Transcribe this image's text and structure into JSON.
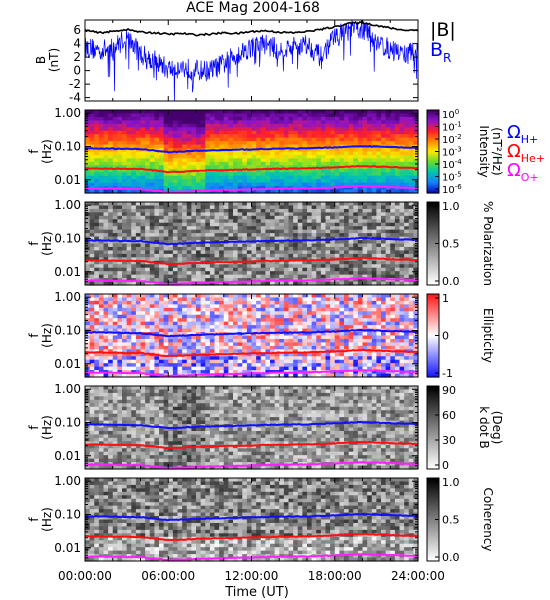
{
  "title": "ACE Mag 2004-168",
  "xlabel": "Time (UT)",
  "xticks": [
    "00:00:00",
    "06:00:00",
    "12:00:00",
    "18:00:00",
    "24:00:00"
  ],
  "legend_top": [
    {
      "label": "|B|",
      "color": "#000000"
    },
    {
      "label": "B",
      "sub": "R",
      "color": "#0000ff"
    }
  ],
  "legend_spec": [
    {
      "label": "Ω",
      "sub": "H+",
      "color": "#0000ff"
    },
    {
      "label": "Ω",
      "sub": "He+",
      "color": "#ff0000"
    },
    {
      "label": "Ω",
      "sub": "O+",
      "color": "#ff00ff"
    }
  ],
  "panel_ylabel_main": "f",
  "panel_ylabel_unit": "(Hz)",
  "freq_ticks": [
    "1.00",
    "0.10",
    "0.01"
  ],
  "colors": {
    "H+": "#1010ff",
    "He+": "#ff1010",
    "O+": "#ff20ff",
    "B": "#000000",
    "BR": "#0000ff"
  },
  "panels": [
    {
      "type": "spectrogram",
      "colormap": "rainbow",
      "cbar_label_1": "Intensity",
      "cbar_label_2": "(nT²/Hz)",
      "cbar_ticks": [
        {
          "b": "10",
          "e": "0"
        },
        {
          "b": "10",
          "e": "-1"
        },
        {
          "b": "10",
          "e": "-2"
        },
        {
          "b": "10",
          "e": "-3"
        },
        {
          "b": "10",
          "e": "-4"
        },
        {
          "b": "10",
          "e": "-5"
        },
        {
          "b": "10",
          "e": "-6"
        }
      ]
    },
    {
      "type": "spectrogram",
      "colormap": "gray",
      "cbar_label_1": "% Polarization",
      "cbar_label_2": "",
      "cbar_ticks": [
        "1.0",
        "0.5",
        "0.0"
      ]
    },
    {
      "type": "spectrogram",
      "colormap": "bwr",
      "cbar_label_1": "Ellipticity",
      "cbar_label_2": "",
      "cbar_ticks": [
        "1",
        "0",
        "-1"
      ]
    },
    {
      "type": "spectrogram",
      "colormap": "gray_rev",
      "cbar_label_1": "k dot B",
      "cbar_label_2": "(Deg)",
      "cbar_ticks": [
        "90",
        "60",
        "30",
        "0"
      ]
    },
    {
      "type": "spectrogram",
      "colormap": "gray",
      "cbar_label_1": "Coherency",
      "cbar_label_2": "",
      "cbar_ticks": [
        "1.0",
        "0.5",
        "0.0"
      ]
    }
  ],
  "chart_data": {
    "type": "line",
    "title": "ACE Mag 2004-168",
    "xlabel": "Time (UT)",
    "xlim": [
      0,
      24
    ],
    "top_panel": {
      "ylabel": "B (nT)",
      "ylim": [
        -4.5,
        7.5
      ],
      "yticks": [
        6,
        4,
        2,
        0,
        -2,
        -4
      ],
      "x": [
        0,
        1,
        2,
        3,
        4,
        5,
        6,
        7,
        8,
        9,
        10,
        11,
        12,
        13,
        14,
        15,
        16,
        17,
        18,
        19,
        20,
        21,
        22,
        23,
        24
      ],
      "series": [
        {
          "name": "|B|",
          "values": [
            6.0,
            5.6,
            5.8,
            6.1,
            5.7,
            5.6,
            5.4,
            5.5,
            5.3,
            5.4,
            5.6,
            5.5,
            5.8,
            5.9,
            5.7,
            5.6,
            5.8,
            6.1,
            6.5,
            7.0,
            7.1,
            6.7,
            6.3,
            6.0,
            6.0
          ]
        },
        {
          "name": "B_R",
          "values": [
            3.5,
            3.0,
            3.2,
            5.0,
            2.5,
            1.5,
            0.2,
            0.5,
            0.0,
            0.0,
            1.0,
            2.5,
            3.5,
            4.0,
            3.0,
            3.5,
            4.0,
            2.0,
            5.0,
            6.0,
            6.2,
            4.5,
            3.0,
            2.5,
            2.8
          ]
        }
      ]
    },
    "frequency_lines": {
      "ylabel": "f (Hz)",
      "yscale": "log",
      "ylim": [
        0.004,
        1.25
      ],
      "x": [
        0,
        2,
        4,
        6,
        7,
        8,
        10,
        12,
        14,
        16,
        18,
        20,
        22,
        24
      ],
      "series": [
        {
          "name": "Ω_H+",
          "values": [
            0.088,
            0.086,
            0.083,
            0.068,
            0.07,
            0.074,
            0.078,
            0.082,
            0.086,
            0.088,
            0.094,
            0.103,
            0.096,
            0.09
          ]
        },
        {
          "name": "Ω_He+",
          "values": [
            0.022,
            0.0215,
            0.021,
            0.017,
            0.0175,
            0.0185,
            0.0195,
            0.0205,
            0.0215,
            0.022,
            0.0235,
            0.026,
            0.024,
            0.0225
          ]
        },
        {
          "name": "Ω_O+",
          "values": [
            0.0055,
            0.0054,
            0.0052,
            0.0043,
            0.0044,
            0.0046,
            0.0049,
            0.0051,
            0.0054,
            0.0055,
            0.0059,
            0.0064,
            0.006,
            0.0056
          ]
        }
      ]
    }
  }
}
